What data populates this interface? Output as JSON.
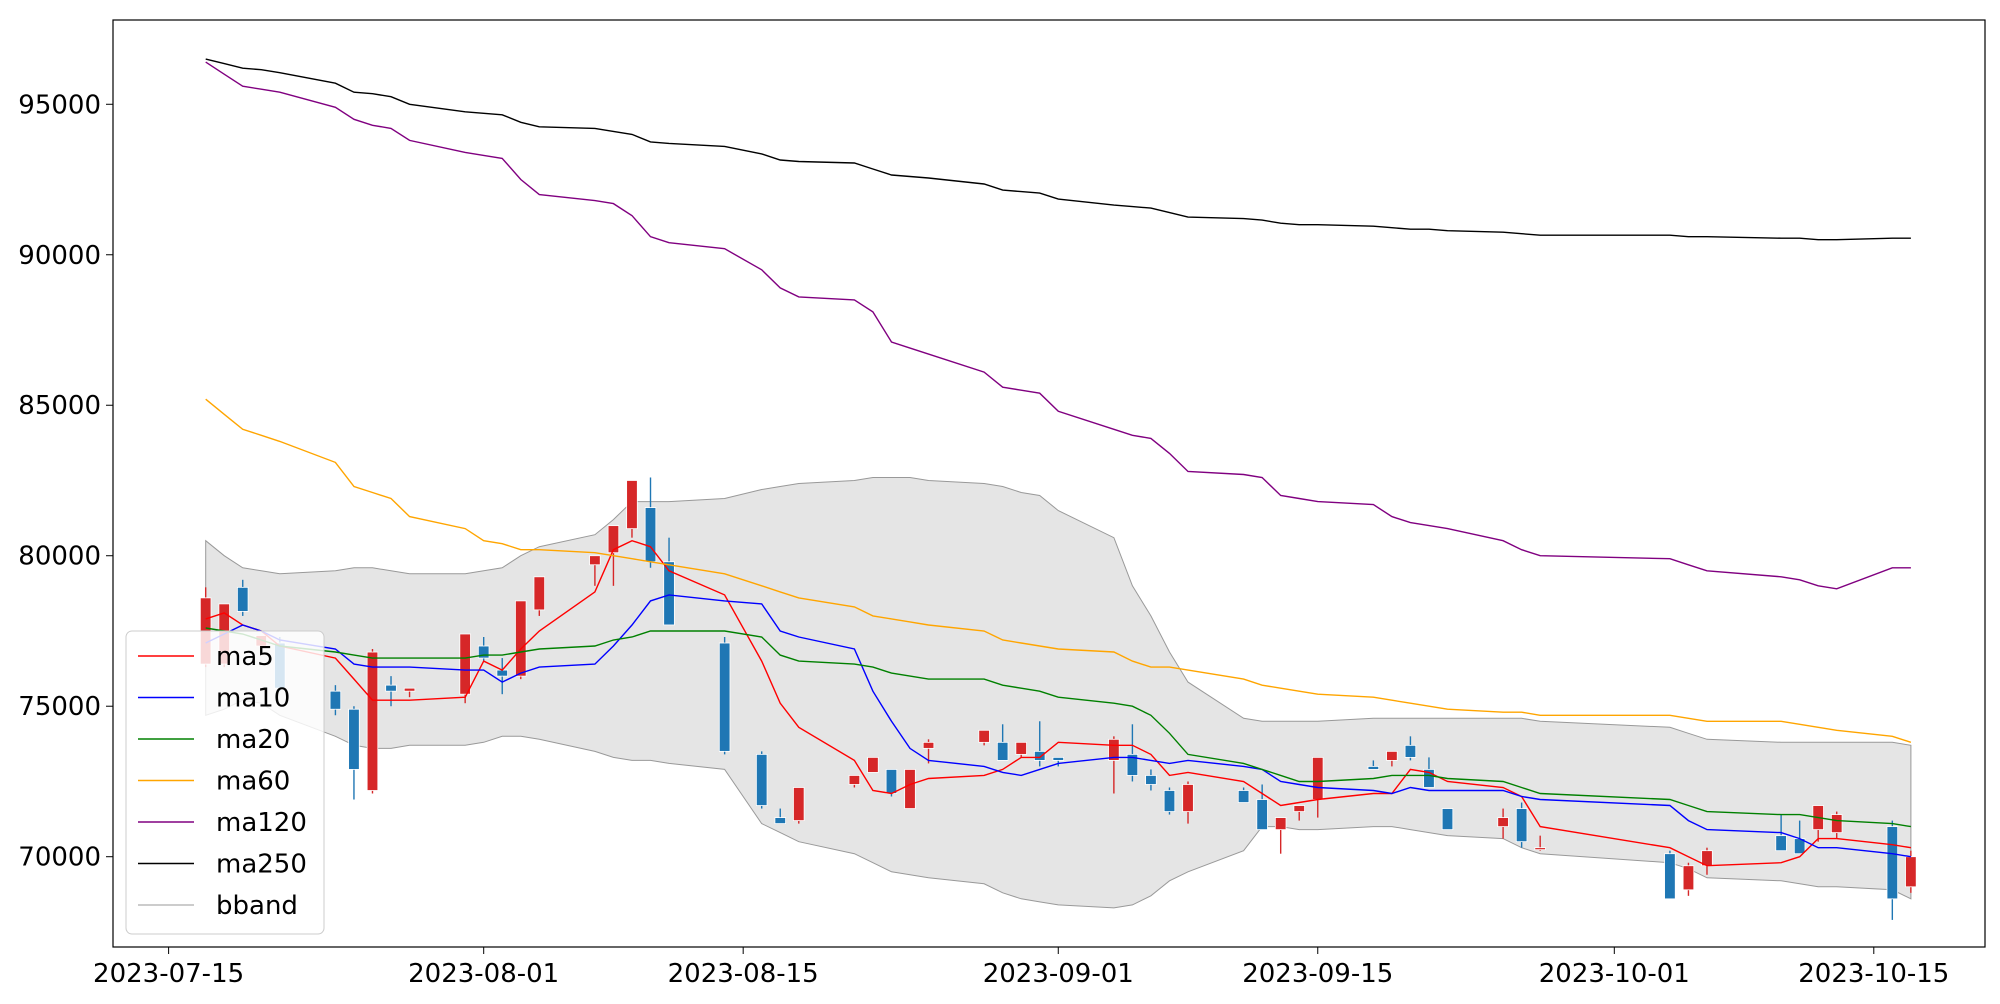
{
  "chart_data": {
    "type": "candlestick",
    "title": "",
    "xlabel": "",
    "ylabel": "",
    "xlim": [
      "2023-07-12",
      "2023-10-21"
    ],
    "ylim": [
      67000,
      97800
    ],
    "yticks": [
      70000,
      75000,
      80000,
      85000,
      90000,
      95000
    ],
    "xticks": [
      "2023-07-15",
      "2023-08-01",
      "2023-08-15",
      "2023-09-01",
      "2023-09-15",
      "2023-10-01",
      "2023-10-15"
    ],
    "grid": false,
    "legend": {
      "position": "lower-left",
      "entries": [
        "ma5",
        "ma10",
        "ma20",
        "ma60",
        "ma120",
        "ma250",
        "bband"
      ]
    },
    "colors": {
      "up": "#d62728",
      "down": "#1f77b4",
      "bband_fill": "#e5e5e5",
      "bband_edge": "#999999"
    },
    "dates": [
      "2023-07-17",
      "2023-07-18",
      "2023-07-19",
      "2023-07-20",
      "2023-07-21",
      "2023-07-24",
      "2023-07-25",
      "2023-07-26",
      "2023-07-27",
      "2023-07-28",
      "2023-07-31",
      "2023-08-01",
      "2023-08-02",
      "2023-08-03",
      "2023-08-04",
      "2023-08-07",
      "2023-08-08",
      "2023-08-09",
      "2023-08-10",
      "2023-08-11",
      "2023-08-14",
      "2023-08-16",
      "2023-08-17",
      "2023-08-18",
      "2023-08-21",
      "2023-08-22",
      "2023-08-23",
      "2023-08-24",
      "2023-08-25",
      "2023-08-28",
      "2023-08-29",
      "2023-08-30",
      "2023-08-31",
      "2023-09-01",
      "2023-09-04",
      "2023-09-05",
      "2023-09-06",
      "2023-09-07",
      "2023-09-08",
      "2023-09-11",
      "2023-09-12",
      "2023-09-13",
      "2023-09-14",
      "2023-09-15",
      "2023-09-18",
      "2023-09-19",
      "2023-09-20",
      "2023-09-21",
      "2023-09-22",
      "2023-09-25",
      "2023-09-26",
      "2023-09-27",
      "2023-10-04",
      "2023-10-05",
      "2023-10-06",
      "2023-10-10",
      "2023-10-11",
      "2023-10-12",
      "2023-10-13",
      "2023-10-16",
      "2023-10-17"
    ],
    "ohlc": [
      [
        76400,
        78950,
        76300,
        78600
      ],
      [
        76400,
        78400,
        76300,
        78400
      ],
      [
        78950,
        79200,
        78000,
        78150
      ],
      [
        77000,
        77300,
        76900,
        77350
      ],
      [
        77100,
        77300,
        75500,
        75600
      ],
      [
        75500,
        75700,
        74700,
        74900
      ],
      [
        74900,
        75000,
        71900,
        72900
      ],
      [
        72200,
        76900,
        72100,
        76800
      ],
      [
        75700,
        76000,
        75000,
        75500
      ],
      [
        75500,
        75500,
        75300,
        75600
      ],
      [
        75400,
        77400,
        75100,
        77400
      ],
      [
        77000,
        77300,
        76500,
        76600
      ],
      [
        76200,
        76600,
        75400,
        76000
      ],
      [
        76000,
        78500,
        75900,
        78500
      ],
      [
        78200,
        79300,
        78000,
        79300
      ],
      [
        79700,
        80000,
        79000,
        80000
      ],
      [
        80100,
        81000,
        79000,
        81000
      ],
      [
        80900,
        82500,
        80600,
        82500
      ],
      [
        81600,
        82600,
        79600,
        79800
      ],
      [
        79800,
        80600,
        77700,
        77700
      ],
      [
        77100,
        77300,
        73400,
        73500
      ],
      [
        73400,
        73500,
        71600,
        71700
      ],
      [
        71300,
        71600,
        71100,
        71100
      ],
      [
        71200,
        72300,
        71100,
        72300
      ],
      [
        72400,
        72600,
        72300,
        72700
      ],
      [
        72800,
        73000,
        72800,
        73300
      ],
      [
        72900,
        72900,
        72000,
        72100
      ],
      [
        71600,
        72900,
        71600,
        72900
      ],
      [
        73600,
        73900,
        73100,
        73800
      ],
      [
        73800,
        74100,
        73700,
        74200
      ],
      [
        73800,
        74400,
        73300,
        73200
      ],
      [
        73400,
        73800,
        73300,
        73800
      ],
      [
        73500,
        74500,
        73000,
        73200
      ],
      [
        73300,
        73300,
        73000,
        73200
      ],
      [
        73200,
        74000,
        72100,
        73900
      ],
      [
        73400,
        74400,
        72500,
        72700
      ],
      [
        72700,
        72900,
        72200,
        72400
      ],
      [
        72200,
        72300,
        71400,
        71500
      ],
      [
        71500,
        72500,
        71100,
        72400
      ],
      [
        72200,
        72300,
        71800,
        71800
      ],
      [
        71900,
        72400,
        70900,
        70900
      ],
      [
        70900,
        71300,
        70100,
        71300
      ],
      [
        71500,
        71600,
        71200,
        71700
      ],
      [
        71900,
        73300,
        71300,
        73300
      ],
      [
        73000,
        73200,
        72900,
        72900
      ],
      [
        73200,
        73500,
        73000,
        73500
      ],
      [
        73700,
        74000,
        73200,
        73300
      ],
      [
        72900,
        73300,
        72300,
        72300
      ],
      [
        71600,
        71600,
        70900,
        70900
      ],
      [
        71000,
        71600,
        70600,
        71300
      ],
      [
        71600,
        71800,
        70300,
        70500
      ],
      [
        70300,
        70700,
        70200,
        70300
      ],
      [
        70100,
        70200,
        68600,
        68600
      ],
      [
        68900,
        69800,
        68700,
        69700
      ],
      [
        69700,
        70300,
        69400,
        70200
      ],
      [
        70700,
        71400,
        70200,
        70200
      ],
      [
        70600,
        71200,
        70300,
        70100
      ],
      [
        70900,
        71700,
        70500,
        71700
      ],
      [
        70800,
        71500,
        70600,
        71400
      ],
      [
        71000,
        71200,
        67900,
        68600
      ],
      [
        69000,
        70200,
        68800,
        70000
      ]
    ],
    "series": [
      {
        "name": "ma5",
        "color": "#ff0000",
        "values": [
          77900,
          78100,
          77700,
          77500,
          77000,
          76600,
          75900,
          75200,
          75200,
          75200,
          75300,
          76500,
          76200,
          76900,
          77500,
          78800,
          80200,
          80500,
          80300,
          79500,
          78700,
          76500,
          75100,
          74300,
          73200,
          72200,
          72100,
          72400,
          72600,
          72700,
          72900,
          73300,
          73300,
          73800,
          73700,
          73700,
          73400,
          72700,
          72800,
          72500,
          72100,
          71700,
          71800,
          71900,
          72100,
          72100,
          72900,
          72800,
          72500,
          72300,
          72000,
          71000,
          70300,
          70000,
          69700,
          69800,
          70000,
          70600,
          70600,
          70400,
          70300
        ]
      },
      {
        "name": "ma10",
        "color": "#0000ff",
        "values": [
          77100,
          77400,
          77700,
          77500,
          77200,
          76900,
          76400,
          76300,
          76300,
          76300,
          76200,
          76200,
          75800,
          76100,
          76300,
          76400,
          77000,
          77700,
          78500,
          78700,
          78500,
          78400,
          77500,
          77300,
          76900,
          75500,
          74500,
          73600,
          73200,
          73000,
          72800,
          72700,
          72900,
          73100,
          73300,
          73300,
          73200,
          73100,
          73200,
          73000,
          72900,
          72500,
          72400,
          72300,
          72200,
          72100,
          72300,
          72200,
          72200,
          72200,
          72000,
          71900,
          71700,
          71200,
          70900,
          70800,
          70600,
          70300,
          70300,
          70100,
          70000
        ]
      },
      {
        "name": "ma20",
        "color": "#008000",
        "values": [
          77600,
          77500,
          77400,
          77200,
          77000,
          76800,
          76700,
          76600,
          76600,
          76600,
          76600,
          76700,
          76700,
          76800,
          76900,
          77000,
          77200,
          77300,
          77500,
          77500,
          77500,
          77300,
          76700,
          76500,
          76400,
          76300,
          76100,
          76000,
          75900,
          75900,
          75700,
          75600,
          75500,
          75300,
          75100,
          75000,
          74700,
          74100,
          73400,
          73100,
          72900,
          72700,
          72500,
          72500,
          72600,
          72700,
          72700,
          72700,
          72600,
          72500,
          72300,
          72100,
          71900,
          71700,
          71500,
          71400,
          71400,
          71300,
          71200,
          71100,
          71000
        ]
      },
      {
        "name": "ma60",
        "color": "#ffa500",
        "values": [
          85200,
          84700,
          84200,
          84000,
          83800,
          83100,
          82300,
          82100,
          81900,
          81300,
          80900,
          80500,
          80400,
          80200,
          80200,
          80100,
          80000,
          79900,
          79800,
          79700,
          79400,
          79000,
          78800,
          78600,
          78300,
          78000,
          77900,
          77800,
          77700,
          77500,
          77200,
          77100,
          77000,
          76900,
          76800,
          76500,
          76300,
          76300,
          76200,
          75900,
          75700,
          75600,
          75500,
          75400,
          75300,
          75200,
          75100,
          75000,
          74900,
          74800,
          74800,
          74700,
          74700,
          74600,
          74500,
          74500,
          74400,
          74300,
          74200,
          74000,
          73800
        ]
      },
      {
        "name": "ma120",
        "color": "#800080",
        "values": [
          96400,
          96000,
          95600,
          95500,
          95400,
          94900,
          94500,
          94300,
          94200,
          93800,
          93400,
          93300,
          93200,
          92500,
          92000,
          91800,
          91700,
          91300,
          90600,
          90400,
          90200,
          89500,
          88900,
          88600,
          88500,
          88100,
          87100,
          86900,
          86700,
          86100,
          85600,
          85500,
          85400,
          84800,
          84200,
          84000,
          83900,
          83400,
          82800,
          82700,
          82600,
          82000,
          81900,
          81800,
          81700,
          81300,
          81100,
          81000,
          80900,
          80500,
          80200,
          80000,
          79900,
          79700,
          79500,
          79300,
          79200,
          79000,
          78900,
          79600,
          79600
        ]
      },
      {
        "name": "ma250",
        "color": "#000000",
        "values": [
          96500,
          96350,
          96200,
          96150,
          96050,
          95700,
          95400,
          95350,
          95250,
          95000,
          94750,
          94700,
          94650,
          94400,
          94250,
          94200,
          94100,
          94000,
          93750,
          93700,
          93600,
          93350,
          93150,
          93100,
          93050,
          92850,
          92650,
          92600,
          92550,
          92350,
          92150,
          92100,
          92050,
          91850,
          91650,
          91600,
          91550,
          91400,
          91250,
          91200,
          91150,
          91050,
          91000,
          91000,
          90950,
          90900,
          90850,
          90850,
          90800,
          90750,
          90700,
          90650,
          90650,
          90600,
          90600,
          90550,
          90550,
          90500,
          90500,
          90550,
          90550
        ]
      }
    ],
    "bband": {
      "name": "bband",
      "upper": [
        80500,
        80000,
        79600,
        79500,
        79400,
        79500,
        79600,
        79600,
        79500,
        79400,
        79400,
        79500,
        79600,
        80000,
        80300,
        80700,
        81200,
        81800,
        81800,
        81800,
        81900,
        82200,
        82300,
        82400,
        82500,
        82600,
        82600,
        82600,
        82500,
        82400,
        82300,
        82100,
        82000,
        81500,
        80600,
        79000,
        78000,
        76800,
        75800,
        74600,
        74500,
        74500,
        74500,
        74500,
        74600,
        74600,
        74600,
        74600,
        74600,
        74600,
        74600,
        74500,
        74300,
        74100,
        73900,
        73800,
        73800,
        73800,
        73800,
        73800,
        73700
      ],
      "lower": [
        74700,
        74900,
        75200,
        75100,
        74700,
        74000,
        73700,
        73600,
        73600,
        73700,
        73700,
        73800,
        74000,
        74000,
        73900,
        73500,
        73300,
        73200,
        73200,
        73100,
        72900,
        71100,
        70800,
        70500,
        70100,
        69800,
        69500,
        69400,
        69300,
        69100,
        68800,
        68600,
        68500,
        68400,
        68300,
        68400,
        68700,
        69200,
        69500,
        70200,
        71000,
        71000,
        70900,
        70900,
        71000,
        71000,
        70900,
        70800,
        70700,
        70600,
        70300,
        70100,
        69800,
        69600,
        69300,
        69200,
        69100,
        69000,
        69000,
        68900,
        68600
      ]
    }
  }
}
